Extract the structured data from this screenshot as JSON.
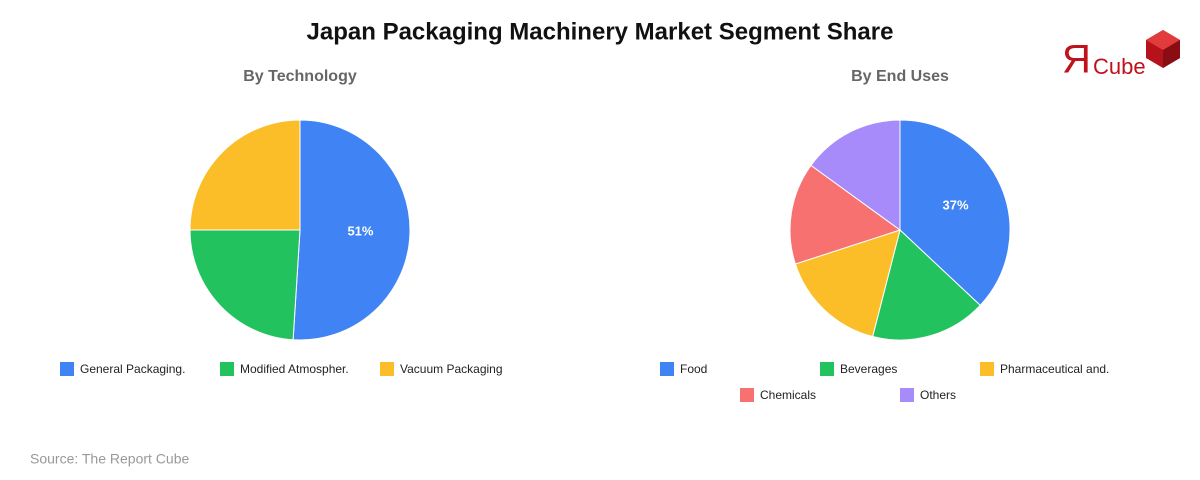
{
  "title": "Japan Packaging Machinery Market Segment Share",
  "logo": {
    "mark": "Я",
    "text": "Cube"
  },
  "source": "Source: The Report Cube",
  "chart_data": [
    {
      "type": "pie",
      "title": "By Technology",
      "categories": [
        "General Packaging.",
        "Modified Atmospher.",
        "Vacuum Packaging"
      ],
      "values": [
        51,
        24,
        25
      ],
      "value_labels": [
        "51%",
        null,
        null
      ],
      "colors": [
        "#3f83f4",
        "#22c35e",
        "#fbbd28"
      ]
    },
    {
      "type": "pie",
      "title": "By End Uses",
      "categories": [
        "Food",
        "Beverages",
        "Pharmaceutical and.",
        "Chemicals",
        "Others"
      ],
      "values": [
        37,
        17,
        16,
        15,
        15
      ],
      "value_labels": [
        "37%",
        null,
        null,
        null,
        null
      ],
      "colors": [
        "#3f83f4",
        "#22c35e",
        "#fbbd28",
        "#f87171",
        "#a78bfa"
      ]
    }
  ]
}
